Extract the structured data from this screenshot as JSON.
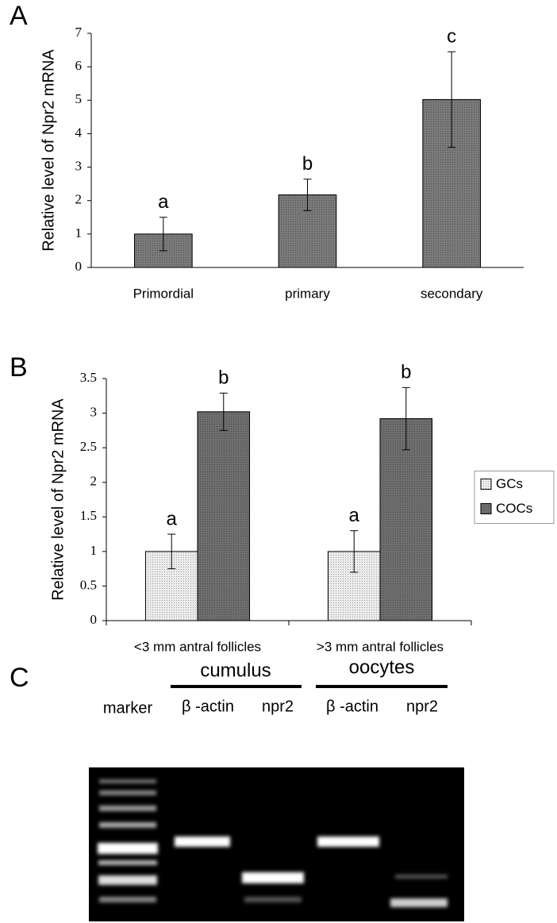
{
  "chart_data": [
    {
      "type": "bar",
      "panel_label": "A",
      "ylabel": "Relative level of Npr2 mRNA",
      "categories": [
        "Primordial",
        "primary",
        "secondary"
      ],
      "values": [
        1,
        2.17,
        5.02
      ],
      "errors": [
        0.5,
        0.47,
        1.43
      ],
      "annotations": [
        "a",
        "b",
        "c"
      ],
      "color": "#7a7a7a",
      "ylim": [
        0,
        7
      ],
      "yticks": [
        0,
        1,
        2,
        3,
        4,
        5,
        6,
        7
      ]
    },
    {
      "type": "bar",
      "panel_label": "B",
      "ylabel": "Relative level of Npr2 mRNA",
      "categories": [
        "<3 mm antral follicles",
        ">3 mm antral follicles"
      ],
      "series": [
        {
          "name": "GCs",
          "color": "#ececec",
          "values": [
            1,
            1
          ],
          "errors": [
            0.25,
            0.3
          ],
          "annotations": [
            "a",
            "a"
          ]
        },
        {
          "name": "COCs",
          "color": "#6e6e6e",
          "values": [
            3.02,
            2.92
          ],
          "errors": [
            0.27,
            0.45
          ],
          "annotations": [
            "b",
            "b"
          ]
        }
      ],
      "ylim": [
        0,
        3.5
      ],
      "yticks": [
        0,
        0.5,
        1,
        1.5,
        2,
        2.5,
        3,
        3.5
      ],
      "legend": "right"
    }
  ],
  "gel": {
    "panel_label": "C",
    "groups": [
      "cumulus",
      "oocytes"
    ],
    "lanes": [
      "marker",
      "β -actin",
      "npr2",
      "β -actin",
      "npr2"
    ]
  }
}
